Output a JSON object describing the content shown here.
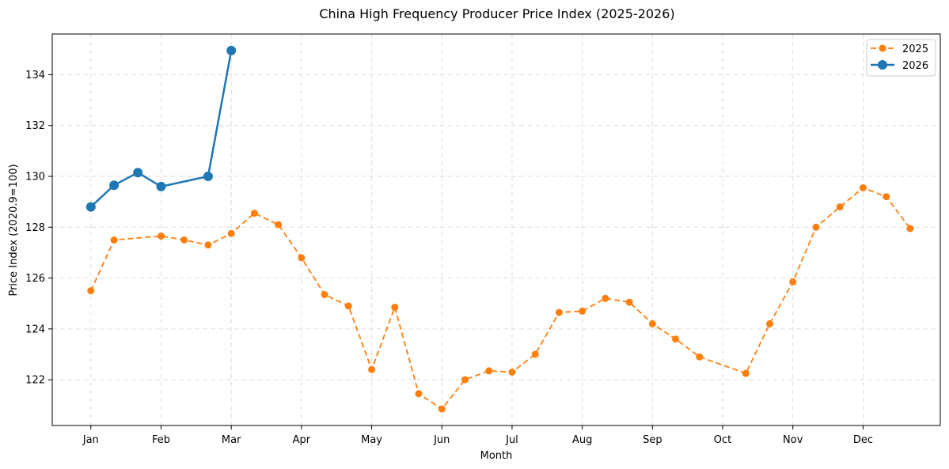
{
  "chart_data": {
    "type": "line",
    "title": "China High Frequency Producer Price Index (2025-2026)",
    "xlabel": "Month",
    "ylabel": "Price Index (2020.9=100)",
    "x_range": [
      -0.55,
      12.1
    ],
    "ylim": [
      120.2,
      135.6
    ],
    "x_ticks": [
      {
        "value": 0,
        "label": "Jan"
      },
      {
        "value": 1,
        "label": "Feb"
      },
      {
        "value": 2,
        "label": "Mar"
      },
      {
        "value": 3,
        "label": "Apr"
      },
      {
        "value": 4,
        "label": "May"
      },
      {
        "value": 5,
        "label": "Jun"
      },
      {
        "value": 6,
        "label": "Jul"
      },
      {
        "value": 7,
        "label": "Aug"
      },
      {
        "value": 8,
        "label": "Sep"
      },
      {
        "value": 9,
        "label": "Oct"
      },
      {
        "value": 10,
        "label": "Nov"
      },
      {
        "value": 11,
        "label": "Dec"
      }
    ],
    "y_ticks": [
      122,
      124,
      126,
      128,
      130,
      132,
      134
    ],
    "grid": true,
    "legend_position": "top-right",
    "series": [
      {
        "name": "2025",
        "color": "#ff7f0e",
        "line_style": "dashed",
        "marker": "circle-small",
        "x": [
          0,
          0.33,
          1,
          1.33,
          1.67,
          2,
          2.33,
          2.67,
          3,
          3.33,
          3.67,
          4,
          4.33,
          4.67,
          5,
          5.33,
          5.67,
          6,
          6.33,
          6.67,
          7,
          7.33,
          7.67,
          8,
          8.33,
          8.67,
          9.33,
          9.67,
          10,
          10.33,
          10.67,
          11,
          11.33,
          11.67
        ],
        "values": [
          125.5,
          127.5,
          127.65,
          127.5,
          127.3,
          127.75,
          128.55,
          128.1,
          126.8,
          125.35,
          124.9,
          122.4,
          124.85,
          121.45,
          120.85,
          122.0,
          122.35,
          122.3,
          123.0,
          124.65,
          124.7,
          125.2,
          125.05,
          124.2,
          123.6,
          122.9,
          122.25,
          124.2,
          125.85,
          128.0,
          128.8,
          129.55,
          129.2,
          127.95
        ]
      },
      {
        "name": "2026",
        "color": "#1f77b4",
        "line_style": "solid",
        "marker": "circle-large",
        "x": [
          0,
          0.33,
          0.67,
          1,
          1.67,
          2
        ],
        "values": [
          128.8,
          129.65,
          130.15,
          129.6,
          130.0,
          134.95
        ]
      }
    ]
  }
}
